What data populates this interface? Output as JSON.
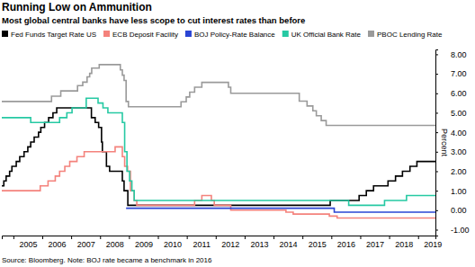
{
  "chart_data": {
    "type": "line",
    "title": "Running Low on Ammunition",
    "subtitle": "Most global central banks have less scope to cut interest rates than before",
    "y_label": "Percent",
    "source": "Source: Bloomberg. Note: BOJ rate became a benchmark in 2016",
    "line_style": "step",
    "grid": false,
    "legend": "top",
    "xlim": [
      2004.6,
      2019.6
    ],
    "xticks": [
      2005,
      2006,
      2007,
      2008,
      2009,
      2010,
      2011,
      2012,
      2013,
      2014,
      2015,
      2016,
      2017,
      2018,
      2019
    ],
    "ylim": [
      -1.3,
      8.25
    ],
    "yticks": [
      {
        "value": 8,
        "label": "8.00"
      },
      {
        "value": 7,
        "label": "7.00"
      },
      {
        "value": 6,
        "label": "6.00"
      },
      {
        "value": 5,
        "label": "5.00"
      },
      {
        "value": 4,
        "label": "4.00"
      },
      {
        "value": 3,
        "label": "3.00"
      },
      {
        "value": 2,
        "label": "2.00"
      },
      {
        "value": 1,
        "label": "1.00"
      },
      {
        "value": 0,
        "label": "0.00"
      },
      {
        "value": -1,
        "label": "-1.00"
      }
    ],
    "series": [
      {
        "name": "Fed Funds Target Rate US",
        "color": "#000000",
        "x": [
          2004.6,
          2004.67,
          2004.75,
          2004.87,
          2004.95,
          2005.1,
          2005.22,
          2005.37,
          2005.5,
          2005.6,
          2005.72,
          2005.87,
          2005.95,
          2006.08,
          2006.22,
          2006.37,
          2006.5,
          2007.7,
          2007.83,
          2007.95,
          2008.05,
          2008.08,
          2008.22,
          2008.33,
          2008.77,
          2008.83,
          2008.96,
          2015.96,
          2016.96,
          2017.21,
          2017.46,
          2017.96,
          2018.22,
          2018.46,
          2018.72,
          2018.96,
          2019.6
        ],
        "values": [
          1.25,
          1.5,
          1.75,
          2.0,
          2.25,
          2.5,
          2.75,
          3.0,
          3.25,
          3.5,
          3.75,
          4.0,
          4.25,
          4.5,
          4.75,
          5.0,
          5.25,
          4.75,
          4.5,
          4.25,
          3.5,
          3.0,
          2.25,
          2.0,
          1.5,
          1.0,
          0.25,
          0.5,
          0.75,
          1.0,
          1.25,
          1.5,
          1.75,
          2.0,
          2.25,
          2.5,
          2.5
        ]
      },
      {
        "name": "ECB Deposit Facility",
        "color": "#f4827c",
        "x": [
          2004.6,
          2005.93,
          2006.2,
          2006.45,
          2006.6,
          2006.78,
          2006.95,
          2007.2,
          2007.45,
          2008.52,
          2008.77,
          2008.85,
          2008.95,
          2009.05,
          2009.18,
          2009.27,
          2011.27,
          2011.52,
          2011.85,
          2011.95,
          2012.52,
          2014.43,
          2014.68,
          2015.93,
          2016.2,
          2019.6
        ],
        "values": [
          1.0,
          1.25,
          1.5,
          1.75,
          2.0,
          2.25,
          2.5,
          2.75,
          3.0,
          3.25,
          2.75,
          2.25,
          2.0,
          1.0,
          0.5,
          0.25,
          0.5,
          0.75,
          0.5,
          0.25,
          0.0,
          -0.1,
          -0.2,
          -0.3,
          -0.4,
          -0.4
        ]
      },
      {
        "name": "BOJ Policy-Rate Balance",
        "color": "#2a45d4",
        "x": [
          2008.9,
          2016.1,
          2019.6
        ],
        "values": [
          0.1,
          -0.1,
          -0.1
        ]
      },
      {
        "name": "UK Official Bank Rate",
        "color": "#26c9a3",
        "x": [
          2004.6,
          2005.6,
          2006.6,
          2006.85,
          2007.03,
          2007.52,
          2007.93,
          2008.1,
          2008.27,
          2008.77,
          2008.85,
          2008.93,
          2009.02,
          2009.1,
          2009.18,
          2016.6,
          2017.84,
          2018.6,
          2019.6
        ],
        "values": [
          4.75,
          4.5,
          4.75,
          5.0,
          5.25,
          5.75,
          5.5,
          5.25,
          5.0,
          4.5,
          3.0,
          2.0,
          1.5,
          1.0,
          0.5,
          0.25,
          0.5,
          0.75,
          0.75
        ]
      },
      {
        "name": "PBOC Lending Rate",
        "color": "#9a9a9a",
        "x": [
          2004.6,
          2006.32,
          2006.64,
          2007.22,
          2007.4,
          2007.55,
          2007.64,
          2007.71,
          2007.97,
          2008.7,
          2008.77,
          2008.83,
          2008.9,
          2008.98,
          2010.8,
          2010.98,
          2011.1,
          2011.27,
          2011.52,
          2012.44,
          2012.52,
          2014.89,
          2015.16,
          2015.36,
          2015.48,
          2015.65,
          2015.82,
          2019.6
        ],
        "values": [
          5.58,
          5.85,
          6.12,
          6.39,
          6.57,
          6.84,
          7.02,
          7.29,
          7.47,
          7.2,
          6.93,
          6.66,
          5.58,
          5.31,
          5.56,
          5.81,
          6.06,
          6.31,
          6.56,
          6.31,
          6.0,
          5.6,
          5.35,
          5.1,
          4.85,
          4.6,
          4.35,
          4.35
        ]
      }
    ]
  }
}
